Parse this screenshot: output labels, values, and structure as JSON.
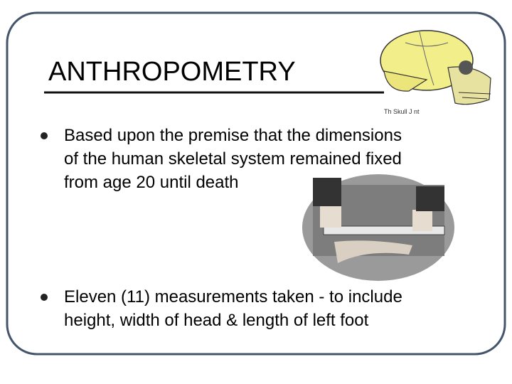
{
  "title": "ANTHROPOMETRY",
  "image_caption": "Th  Skull J  nt",
  "bullets": [
    {
      "lines": [
        "Based upon the premise that the dimensions",
        "of the human skeletal system remained fixed",
        "from age 20 until death"
      ]
    },
    {
      "lines": [
        "Eleven (11) measurements taken  - to include",
        "height, width of head & length of left foot"
      ]
    }
  ]
}
